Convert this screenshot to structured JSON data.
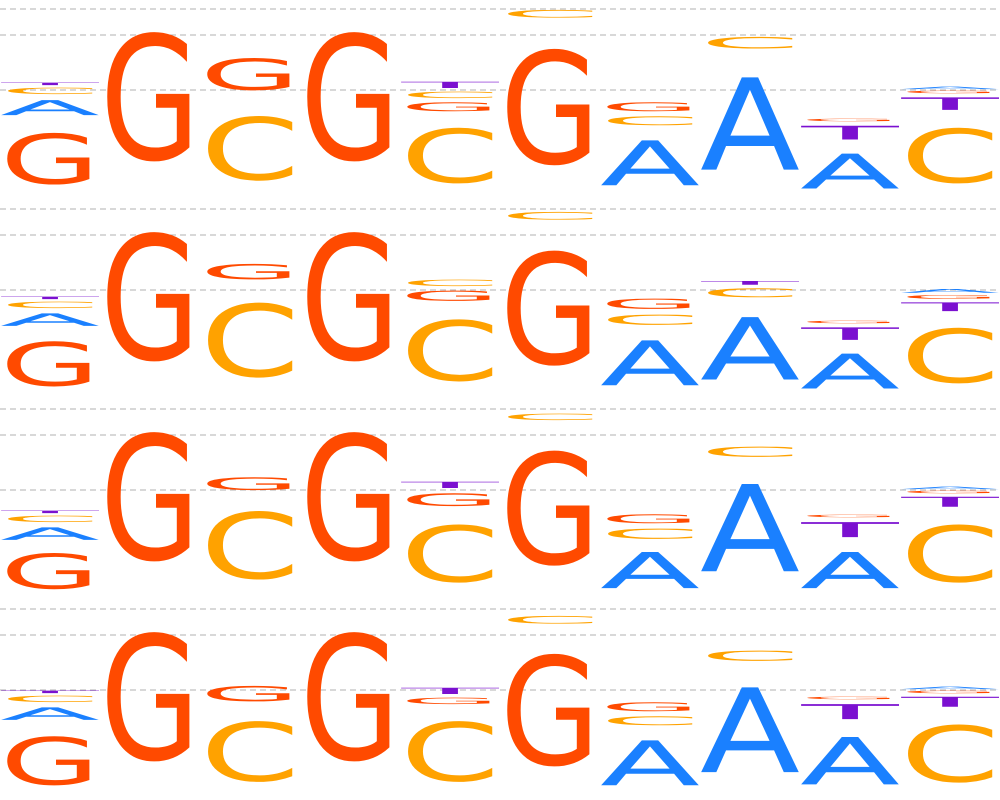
{
  "colors": {
    "A": "#1a80ff",
    "C": "#ffa200",
    "G": "#ff4a00",
    "T": "#7b10d0",
    "grid": "#b0b0b0"
  },
  "logos": [
    {
      "columns": [
        [
          [
            "G",
            0.4
          ],
          [
            "A",
            0.12
          ],
          [
            "C",
            0.05
          ],
          [
            "T",
            0.02
          ]
        ],
        [
          [
            "G",
            1.0
          ]
        ],
        [
          [
            "C",
            0.5
          ],
          [
            "G",
            0.25
          ]
        ],
        [
          [
            "G",
            1.0
          ]
        ],
        [
          [
            "C",
            0.43
          ],
          [
            "G",
            0.07
          ],
          [
            "C",
            0.05
          ],
          [
            "T",
            0.05
          ]
        ],
        [
          [
            "G",
            0.9
          ],
          [
            "C",
            0.06
          ]
        ],
        [
          [
            "A",
            0.36
          ],
          [
            "C",
            0.07
          ],
          [
            "G",
            0.07
          ]
        ],
        [
          [
            "A",
            0.74
          ],
          [
            "C",
            0.09
          ]
        ],
        [
          [
            "A",
            0.28
          ],
          [
            "T",
            0.11
          ],
          [
            "G",
            0.02
          ]
        ],
        [
          [
            "C",
            0.43
          ],
          [
            "T",
            0.1
          ],
          [
            "G",
            0.02
          ],
          [
            "A",
            0.02
          ]
        ]
      ]
    },
    {
      "columns": [
        [
          [
            "G",
            0.35
          ],
          [
            "A",
            0.1
          ],
          [
            "C",
            0.05
          ],
          [
            "T",
            0.02
          ]
        ],
        [
          [
            "G",
            1.0
          ]
        ],
        [
          [
            "C",
            0.58
          ],
          [
            "G",
            0.12
          ]
        ],
        [
          [
            "G",
            1.0
          ]
        ],
        [
          [
            "C",
            0.48
          ],
          [
            "G",
            0.08
          ],
          [
            "C",
            0.05
          ]
        ],
        [
          [
            "G",
            0.89
          ],
          [
            "C",
            0.06
          ]
        ],
        [
          [
            "A",
            0.36
          ],
          [
            "C",
            0.08
          ],
          [
            "G",
            0.08
          ]
        ],
        [
          [
            "A",
            0.5
          ],
          [
            "C",
            0.07
          ],
          [
            "T",
            0.03
          ]
        ],
        [
          [
            "A",
            0.28
          ],
          [
            "T",
            0.1
          ],
          [
            "G",
            0.02
          ]
        ],
        [
          [
            "C",
            0.43
          ],
          [
            "T",
            0.07
          ],
          [
            "G",
            0.03
          ],
          [
            "A",
            0.03
          ]
        ]
      ]
    },
    {
      "columns": [
        [
          [
            "G",
            0.28
          ],
          [
            "A",
            0.1
          ],
          [
            "C",
            0.05
          ],
          [
            "T",
            0.02
          ]
        ],
        [
          [
            "G",
            1.0
          ]
        ],
        [
          [
            "C",
            0.53
          ],
          [
            "G",
            0.1
          ]
        ],
        [
          [
            "G",
            1.0
          ]
        ],
        [
          [
            "C",
            0.45
          ],
          [
            "G",
            0.1
          ],
          [
            "T",
            0.05
          ]
        ],
        [
          [
            "G",
            0.89
          ],
          [
            "C",
            0.05
          ]
        ],
        [
          [
            "A",
            0.29
          ],
          [
            "C",
            0.08
          ],
          [
            "G",
            0.07
          ]
        ],
        [
          [
            "A",
            0.7
          ],
          [
            "C",
            0.08
          ]
        ],
        [
          [
            "A",
            0.29
          ],
          [
            "T",
            0.12
          ],
          [
            "G",
            0.02
          ]
        ],
        [
          [
            "C",
            0.45
          ],
          [
            "T",
            0.08
          ],
          [
            "G",
            0.02
          ],
          [
            "A",
            0.02
          ]
        ]
      ]
    },
    {
      "columns": [
        [
          [
            "G",
            0.38
          ],
          [
            "A",
            0.1
          ],
          [
            "C",
            0.05
          ],
          [
            "T",
            0.02
          ]
        ],
        [
          [
            "G",
            1.0
          ]
        ],
        [
          [
            "C",
            0.47
          ],
          [
            "G",
            0.12
          ]
        ],
        [
          [
            "G",
            1.0
          ]
        ],
        [
          [
            "C",
            0.47
          ],
          [
            "G",
            0.05
          ],
          [
            "T",
            0.05
          ]
        ],
        [
          [
            "G",
            0.87
          ],
          [
            "C",
            0.06
          ]
        ],
        [
          [
            "A",
            0.36
          ],
          [
            "C",
            0.07
          ],
          [
            "G",
            0.07
          ]
        ],
        [
          [
            "A",
            0.68
          ],
          [
            "C",
            0.08
          ]
        ],
        [
          [
            "A",
            0.38
          ],
          [
            "T",
            0.12
          ],
          [
            "G",
            0.02
          ]
        ],
        [
          [
            "C",
            0.45
          ],
          [
            "T",
            0.08
          ],
          [
            "G",
            0.02
          ],
          [
            "A",
            0.02
          ]
        ]
      ]
    }
  ]
}
